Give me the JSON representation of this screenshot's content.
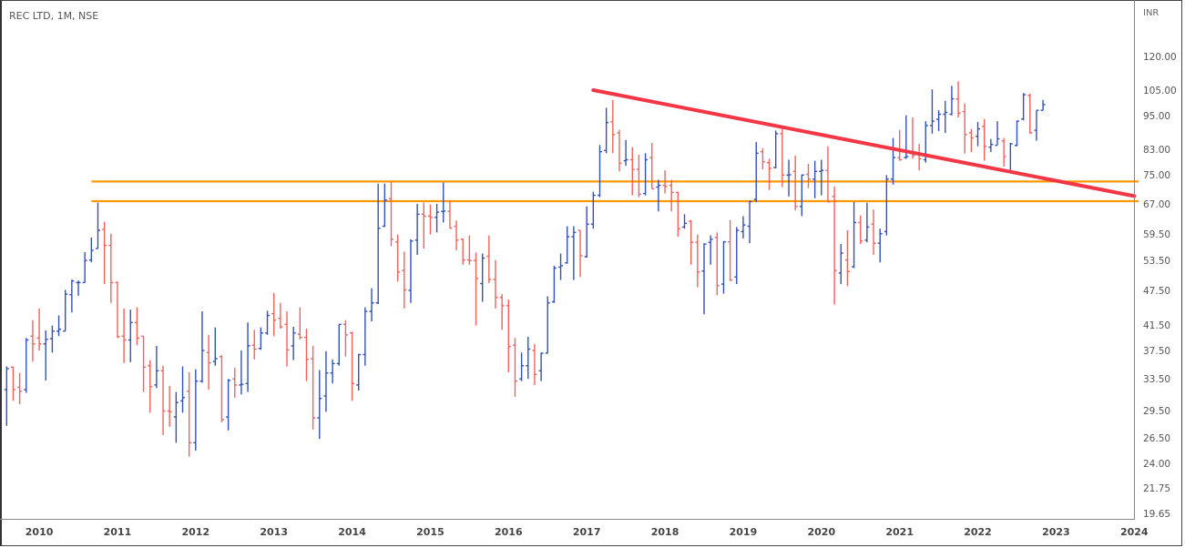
{
  "header": {
    "title": "REC LTD, 1M, NSE"
  },
  "chart_data": {
    "type": "ohlc",
    "title": "REC LTD, 1M, NSE",
    "interval": "1M",
    "first_bar": "2009-08",
    "currency": "INR",
    "scale": "log",
    "ylim": [
      19.65,
      130
    ],
    "price_ticks": [
      "120.00",
      "105.00",
      "95.00",
      "83.00",
      "75.00",
      "67.00",
      "59.50",
      "53.50",
      "47.50",
      "41.50",
      "37.50",
      "33.50",
      "29.50",
      "26.50",
      "24.00",
      "21.75",
      "19.65"
    ],
    "year_ticks": [
      "2010",
      "2011",
      "2012",
      "2013",
      "2014",
      "2015",
      "2016",
      "2017",
      "2018",
      "2019",
      "2020",
      "2021",
      "2022",
      "2023",
      "2024"
    ],
    "bars_ohlc": [
      [
        32.2,
        35.3,
        27.9,
        35.0
      ],
      [
        35.2,
        35.3,
        30.8,
        32.2
      ],
      [
        32.5,
        34.4,
        30.4,
        32.0
      ],
      [
        32.2,
        39.5,
        31.8,
        39.2
      ],
      [
        39.8,
        42.4,
        36.0,
        38.6
      ],
      [
        39.5,
        44.4,
        37.6,
        38.6
      ],
      [
        38.6,
        40.7,
        33.4,
        39.3
      ],
      [
        39.4,
        41.5,
        37.3,
        40.6
      ],
      [
        40.6,
        43.2,
        39.8,
        40.9
      ],
      [
        40.6,
        47.8,
        40.6,
        47.0
      ],
      [
        46.9,
        49.8,
        43.7,
        49.5
      ],
      [
        49.2,
        49.6,
        46.7,
        49.2
      ],
      [
        49.2,
        55.5,
        49.2,
        53.7
      ],
      [
        53.8,
        58.8,
        53.3,
        55.9
      ],
      [
        56.3,
        67.5,
        56.3,
        60.5
      ],
      [
        60.7,
        62.6,
        48.9,
        57.0
      ],
      [
        57.0,
        59.7,
        45.4,
        49.2
      ],
      [
        49.2,
        49.4,
        39.5,
        39.7
      ],
      [
        39.8,
        44.4,
        35.8,
        39.2
      ],
      [
        39.2,
        44.2,
        35.9,
        42.0
      ],
      [
        42.0,
        44.6,
        38.4,
        39.5
      ],
      [
        39.8,
        39.8,
        31.9,
        35.2
      ],
      [
        35.4,
        36.2,
        29.4,
        32.6
      ],
      [
        32.8,
        38.3,
        32.4,
        34.7
      ],
      [
        34.7,
        35.4,
        26.9,
        29.6
      ],
      [
        29.6,
        32.7,
        27.8,
        29.5
      ],
      [
        28.9,
        31.9,
        26.1,
        30.6
      ],
      [
        30.8,
        35.3,
        29.4,
        31.2
      ],
      [
        32.0,
        34.5,
        24.7,
        26.1
      ],
      [
        26.1,
        34.9,
        25.3,
        33.3
      ],
      [
        33.3,
        43.9,
        33.1,
        37.6
      ],
      [
        37.3,
        40.0,
        32.2,
        35.8
      ],
      [
        36.0,
        41.2,
        35.4,
        36.4
      ],
      [
        36.7,
        36.9,
        28.3,
        28.6
      ],
      [
        28.9,
        33.6,
        27.4,
        33.4
      ],
      [
        33.6,
        35.1,
        31.2,
        32.8
      ],
      [
        32.8,
        37.6,
        31.6,
        32.9
      ],
      [
        33.0,
        42.0,
        31.9,
        38.3
      ],
      [
        38.4,
        40.8,
        36.3,
        37.8
      ],
      [
        37.9,
        41.2,
        37.7,
        40.3
      ],
      [
        40.3,
        44.0,
        40.0,
        43.2
      ],
      [
        43.5,
        47.2,
        39.8,
        42.4
      ],
      [
        42.7,
        45.4,
        41.0,
        41.3
      ],
      [
        41.7,
        43.9,
        35.3,
        37.7
      ],
      [
        38.3,
        41.3,
        36.2,
        40.3
      ],
      [
        40.1,
        44.6,
        39.3,
        39.6
      ],
      [
        39.6,
        41.0,
        33.3,
        36.3
      ],
      [
        36.4,
        38.3,
        27.5,
        28.8
      ],
      [
        28.8,
        34.8,
        26.5,
        31.1
      ],
      [
        31.4,
        37.5,
        29.5,
        34.4
      ],
      [
        34.4,
        36.3,
        33.0,
        35.7
      ],
      [
        35.7,
        41.7,
        35.4,
        41.7
      ],
      [
        41.7,
        42.4,
        36.7,
        40.0
      ],
      [
        40.3,
        40.5,
        30.8,
        33.0
      ],
      [
        32.8,
        37.1,
        32.1,
        37.0
      ],
      [
        37.0,
        44.6,
        35.4,
        43.9
      ],
      [
        43.9,
        48.1,
        42.2,
        45.4
      ],
      [
        45.4,
        72.8,
        45.2,
        61.0
      ],
      [
        61.5,
        72.8,
        61.3,
        68.2
      ],
      [
        68.6,
        73.4,
        56.8,
        58.4
      ],
      [
        57.8,
        59.5,
        49.4,
        51.3
      ],
      [
        51.6,
        55.6,
        44.4,
        47.8
      ],
      [
        47.7,
        58.4,
        45.4,
        58.0
      ],
      [
        58.2,
        67.2,
        54.9,
        64.5
      ],
      [
        64.5,
        67.5,
        56.3,
        64.0
      ],
      [
        64.0,
        67.0,
        59.5,
        63.7
      ],
      [
        63.7,
        67.2,
        60.0,
        65.0
      ],
      [
        65.2,
        73.1,
        62.4,
        65.3
      ],
      [
        65.2,
        68.2,
        61.0,
        61.0
      ],
      [
        61.5,
        62.9,
        55.9,
        58.2
      ],
      [
        58.4,
        58.6,
        52.8,
        53.8
      ],
      [
        53.8,
        59.3,
        52.8,
        53.7
      ],
      [
        53.7,
        55.4,
        41.5,
        50.0
      ],
      [
        49.0,
        55.2,
        45.6,
        54.2
      ],
      [
        54.6,
        59.3,
        49.1,
        49.8
      ],
      [
        49.8,
        53.8,
        44.4,
        46.4
      ],
      [
        46.4,
        47.0,
        40.8,
        44.9
      ],
      [
        44.9,
        46.0,
        34.5,
        38.2
      ],
      [
        38.4,
        39.5,
        31.3,
        33.3
      ],
      [
        33.6,
        37.3,
        33.3,
        35.4
      ],
      [
        35.4,
        39.7,
        33.6,
        37.8
      ],
      [
        37.6,
        38.6,
        32.8,
        34.2
      ],
      [
        34.7,
        37.3,
        33.3,
        37.2
      ],
      [
        37.2,
        46.6,
        37.2,
        45.4
      ],
      [
        45.6,
        52.6,
        45.4,
        52.1
      ],
      [
        52.3,
        55.2,
        49.7,
        52.6
      ],
      [
        53.2,
        61.5,
        53.0,
        59.0
      ],
      [
        59.0,
        61.5,
        49.7,
        60.0
      ],
      [
        60.5,
        60.5,
        50.3,
        54.7
      ],
      [
        54.5,
        66.5,
        54.3,
        62.0
      ],
      [
        62.0,
        70.5,
        60.9,
        69.5
      ],
      [
        69.5,
        84.8,
        69.0,
        82.6
      ],
      [
        83.0,
        98.3,
        82.1,
        92.7
      ],
      [
        93.0,
        101.4,
        82.1,
        88.4
      ],
      [
        89.0,
        90.0,
        76.4,
        78.9
      ],
      [
        79.7,
        86.5,
        78.1,
        80.0
      ],
      [
        80.0,
        84.1,
        69.5,
        77.0
      ],
      [
        77.0,
        81.6,
        69.0,
        69.8
      ],
      [
        70.0,
        82.1,
        69.5,
        80.0
      ],
      [
        80.7,
        85.5,
        71.3,
        71.3
      ],
      [
        71.8,
        73.9,
        65.2,
        72.3
      ],
      [
        72.3,
        76.7,
        70.0,
        72.0
      ],
      [
        72.3,
        73.9,
        65.2,
        70.3
      ],
      [
        70.3,
        70.5,
        59.0,
        60.9
      ],
      [
        61.3,
        64.5,
        60.9,
        62.2
      ],
      [
        62.7,
        63.0,
        52.8,
        57.7
      ],
      [
        57.7,
        59.5,
        48.3,
        51.3
      ],
      [
        51.5,
        57.5,
        43.4,
        57.3
      ],
      [
        57.7,
        59.3,
        52.8,
        58.4
      ],
      [
        58.8,
        60.0,
        46.8,
        48.6
      ],
      [
        48.9,
        58.0,
        47.1,
        57.8
      ],
      [
        57.8,
        63.0,
        49.5,
        49.7
      ],
      [
        50.3,
        61.3,
        48.9,
        60.5
      ],
      [
        60.2,
        64.0,
        58.6,
        61.8
      ],
      [
        61.5,
        68.0,
        57.5,
        67.8
      ],
      [
        68.4,
        85.8,
        67.7,
        82.1
      ],
      [
        82.6,
        83.7,
        77.0,
        79.4
      ],
      [
        79.1,
        80.3,
        71.0,
        77.3
      ],
      [
        77.6,
        89.8,
        77.3,
        88.7
      ],
      [
        88.7,
        90.4,
        71.8,
        75.3
      ],
      [
        75.3,
        80.0,
        69.2,
        75.4
      ],
      [
        76.4,
        81.3,
        65.5,
        66.5
      ],
      [
        66.5,
        75.5,
        64.0,
        75.3
      ],
      [
        75.5,
        78.7,
        71.5,
        74.1
      ],
      [
        74.1,
        79.7,
        68.7,
        76.4
      ],
      [
        76.4,
        80.0,
        69.5,
        76.7
      ],
      [
        76.7,
        84.4,
        67.7,
        67.7
      ],
      [
        69.2,
        72.0,
        45.1,
        51.6
      ],
      [
        51.1,
        57.3,
        48.9,
        55.3
      ],
      [
        53.8,
        60.5,
        48.5,
        51.4
      ],
      [
        52.4,
        67.7,
        52.1,
        62.4
      ],
      [
        62.4,
        64.2,
        57.3,
        58.0
      ],
      [
        58.2,
        67.5,
        57.7,
        61.3
      ],
      [
        62.0,
        65.7,
        54.9,
        57.5
      ],
      [
        57.5,
        60.9,
        53.3,
        59.7
      ],
      [
        60.2,
        75.3,
        59.3,
        74.1
      ],
      [
        74.1,
        87.2,
        72.5,
        80.7
      ],
      [
        80.7,
        90.0,
        79.7,
        80.0
      ],
      [
        80.7,
        95.4,
        80.3,
        81.0
      ],
      [
        82.0,
        94.6,
        80.3,
        81.3
      ],
      [
        82.3,
        85.2,
        76.7,
        80.3
      ],
      [
        80.0,
        93.2,
        79.1,
        91.6
      ],
      [
        91.6,
        105.7,
        88.7,
        93.2
      ],
      [
        93.9,
        97.3,
        89.6,
        95.8
      ],
      [
        95.8,
        101.0,
        89.0,
        96.5
      ],
      [
        95.8,
        107.2,
        95.4,
        101.8
      ],
      [
        101.8,
        109.1,
        94.6,
        96.2
      ],
      [
        96.8,
        100.0,
        82.0,
        88.4
      ],
      [
        89.0,
        90.4,
        82.5,
        87.2
      ],
      [
        87.8,
        92.9,
        84.4,
        90.4
      ],
      [
        91.3,
        94.0,
        79.7,
        84.4
      ],
      [
        84.1,
        86.9,
        82.5,
        85.0
      ],
      [
        84.7,
        93.2,
        84.7,
        86.9
      ],
      [
        86.2,
        87.2,
        77.9,
        81.0
      ],
      [
        76.4,
        85.5,
        76.0,
        85.2
      ],
      [
        84.7,
        93.5,
        84.4,
        93.2
      ],
      [
        94.0,
        104.2,
        93.5,
        103.5
      ],
      [
        103.2,
        103.9,
        88.7,
        89.0
      ],
      [
        89.9,
        97.3,
        86.3,
        97.3
      ],
      [
        97.3,
        101.4,
        97.3,
        99.5
      ]
    ],
    "annotations": {
      "horizontal_lines": [
        {
          "price": 73.4,
          "from": "2010-09",
          "color": "#ff9800"
        },
        {
          "price": 67.9,
          "from": "2010-09",
          "color": "#ff9800"
        }
      ],
      "trendline": {
        "from": {
          "date": "2017-02",
          "price": 105.4
        },
        "to": {
          "date": "2024-01",
          "price": 69.3
        },
        "color": "#f23645"
      }
    },
    "colors": {
      "up": "#3350b8",
      "down": "#f0625d"
    }
  }
}
